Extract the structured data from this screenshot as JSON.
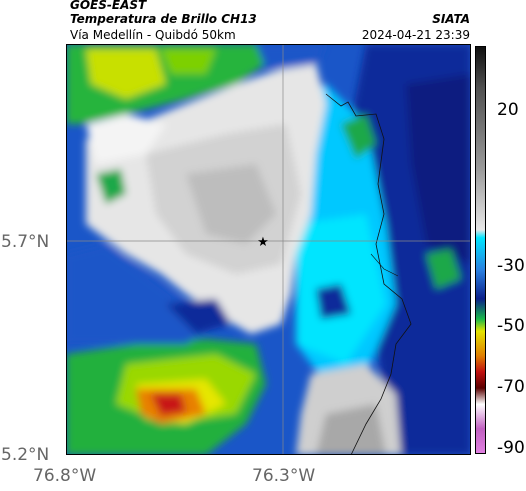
{
  "header": {
    "satellite": "GOES-EAST",
    "product": "Temperatura de Brillo CH13",
    "region": "Vía Medellín - Quibdó 50km",
    "agency": "SIATA",
    "datetime": "2024-04-21 23:39"
  },
  "axes": {
    "y_ticks": [
      "5.7°N",
      "5.2°N"
    ],
    "x_ticks": [
      "76.8°W",
      "76.3°W"
    ]
  },
  "colorbar": {
    "ticks": [
      "20",
      "-30",
      "-50",
      "-70",
      "-90"
    ],
    "colors": [
      "#101010",
      "#505050",
      "#9a9a9a",
      "#e8e8e8",
      "#00e5ff",
      "#2a7fe0",
      "#0b1f8a",
      "#19b84a",
      "#e3e300",
      "#e08000",
      "#c01010",
      "#5a0000",
      "#ffffff",
      "#c060c0"
    ]
  },
  "map": {
    "marker": "★"
  }
}
